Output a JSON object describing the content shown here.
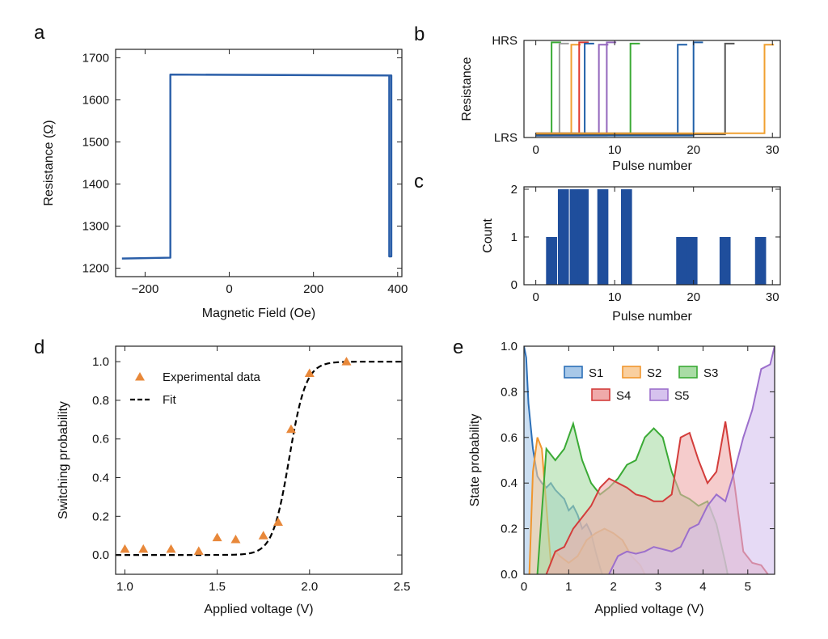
{
  "panels": [
    "a",
    "b",
    "c",
    "d",
    "e"
  ],
  "chart_data": [
    {
      "id": "a",
      "type": "line",
      "xlabel": "Magnetic Field (Oe)",
      "ylabel": "Resistance (Ω)",
      "xlim": [
        -270,
        410
      ],
      "ylim": [
        1180,
        1720
      ],
      "xticks": [
        -200,
        0,
        200,
        400
      ],
      "xtick_labels": [
        "−200",
        "0",
        "200",
        "400"
      ],
      "yticks": [
        1200,
        1300,
        1400,
        1500,
        1600,
        1700
      ],
      "color": "#2a5ea8",
      "series": [
        {
          "name": "hysteresis loop",
          "x": [
            -255,
            -140,
            -140,
            385,
            385,
            385,
            380,
            380,
            -140
          ],
          "y": [
            1223,
            1225,
            1660,
            1658,
            1658,
            1228,
            1228,
            1658,
            1660
          ]
        }
      ]
    },
    {
      "id": "b",
      "type": "line",
      "xlabel": "Pulse number",
      "ylabel": "Resistance",
      "xlim": [
        -1.5,
        31
      ],
      "ylim": [
        0,
        1
      ],
      "xticks": [
        0,
        10,
        20,
        30
      ],
      "yticks": [
        0,
        1
      ],
      "ytick_labels": [
        "LRS",
        "HRS"
      ],
      "series": [
        {
          "name": "d1",
          "switch_at": 2,
          "color": "#3aaa35"
        },
        {
          "name": "d2",
          "switch_at": 3,
          "color": "#9e9e9e"
        },
        {
          "name": "d3",
          "switch_at": 4.5,
          "color": "#f0a030"
        },
        {
          "name": "d4",
          "switch_at": 5.5,
          "color": "#e03a2f"
        },
        {
          "name": "d5",
          "switch_at": 6.2,
          "color": "#1f5fa8"
        },
        {
          "name": "d6",
          "switch_at": 8,
          "color": "#9467bd"
        },
        {
          "name": "d7",
          "switch_at": 9,
          "color": "#9467bd"
        },
        {
          "name": "d8",
          "switch_at": 12,
          "color": "#3aaa35"
        },
        {
          "name": "d9",
          "switch_at": 18,
          "color": "#1f5fa8"
        },
        {
          "name": "d10",
          "switch_at": 20,
          "color": "#1f5fa8"
        },
        {
          "name": "d11",
          "switch_at": 24,
          "color": "#555555"
        },
        {
          "name": "d12",
          "switch_at": 29,
          "color": "#f0a030"
        }
      ]
    },
    {
      "id": "c",
      "type": "bar",
      "xlabel": "Pulse number",
      "ylabel": "Count",
      "xlim": [
        -1.5,
        31
      ],
      "ylim": [
        0,
        2.05
      ],
      "xticks": [
        0,
        10,
        20,
        30
      ],
      "yticks": [
        0,
        1,
        2
      ],
      "color": "#1f4e9c",
      "bar_width": 1.4,
      "x": [
        2,
        3.5,
        5,
        6,
        8.5,
        11.5,
        18.5,
        19.8,
        24,
        28.5
      ],
      "values": [
        1,
        2,
        2,
        2,
        2,
        2,
        1,
        1,
        1,
        1
      ]
    },
    {
      "id": "d",
      "type": "scatter",
      "xlabel": "Applied voltage (V)",
      "ylabel": "Switching probability",
      "xlim": [
        0.95,
        2.5
      ],
      "ylim": [
        -0.1,
        1.08
      ],
      "xticks": [
        1.0,
        1.5,
        2.0,
        2.5
      ],
      "xtick_labels": [
        "1.0",
        "1.5",
        "2.0",
        "2.5"
      ],
      "yticks": [
        0,
        0.2,
        0.4,
        0.6,
        0.8,
        1.0
      ],
      "ytick_labels": [
        "0.0",
        "0.2",
        "0.4",
        "0.6",
        "0.8",
        "1.0"
      ],
      "legend": [
        "Experimental data",
        "Fit"
      ],
      "legend_position": "top-left",
      "series": [
        {
          "name": "Experimental data",
          "color": "#e8883a",
          "x": [
            1.0,
            1.1,
            1.25,
            1.4,
            1.5,
            1.6,
            1.75,
            1.83,
            1.9,
            2.0,
            2.2
          ],
          "y": [
            0.03,
            0.03,
            0.03,
            0.02,
            0.09,
            0.08,
            0.1,
            0.17,
            0.65,
            0.94,
            1.0
          ]
        },
        {
          "name": "Fit",
          "style": "dashed",
          "color": "#000000",
          "model": "logistic",
          "midpoint": 1.89,
          "scale": 0.045
        }
      ]
    },
    {
      "id": "e",
      "type": "area",
      "xlabel": "Applied voltage (V)",
      "ylabel": "State probability",
      "xlim": [
        0,
        5.6
      ],
      "ylim": [
        0,
        1.0
      ],
      "xticks": [
        0,
        1,
        2,
        3,
        4,
        5
      ],
      "yticks": [
        0,
        0.2,
        0.4,
        0.6,
        0.8,
        1.0
      ],
      "ytick_labels": [
        "0.0",
        "0.2",
        "0.4",
        "0.6",
        "0.8",
        "1.0"
      ],
      "legend": [
        "S1",
        "S2",
        "S3",
        "S4",
        "S5"
      ],
      "legend_position": "top-center",
      "series": [
        {
          "name": "S1",
          "color": "#2c6fb7",
          "fill": "#a8c8e8",
          "x": [
            0,
            0.05,
            0.1,
            0.2,
            0.3,
            0.4,
            0.5,
            0.6,
            0.7,
            0.8,
            0.9,
            1.0,
            1.1,
            1.2,
            1.3,
            1.4,
            1.5,
            1.6,
            1.7,
            1.75
          ],
          "y": [
            1.0,
            0.95,
            0.75,
            0.55,
            0.43,
            0.4,
            0.38,
            0.4,
            0.37,
            0.35,
            0.33,
            0.28,
            0.3,
            0.26,
            0.2,
            0.22,
            0.18,
            0.1,
            0.03,
            0.0
          ]
        },
        {
          "name": "S2",
          "color": "#f0962e",
          "fill": "#f9cf9f",
          "x": [
            0.12,
            0.2,
            0.3,
            0.4,
            0.5,
            0.6,
            0.7,
            0.8,
            1.0,
            1.2,
            1.4,
            1.6,
            1.8,
            2.0,
            2.2,
            2.4,
            2.6,
            2.7
          ],
          "y": [
            0.0,
            0.45,
            0.6,
            0.55,
            0.3,
            0.05,
            0.1,
            0.08,
            0.05,
            0.08,
            0.15,
            0.18,
            0.2,
            0.18,
            0.15,
            0.08,
            0.04,
            0.0
          ]
        },
        {
          "name": "S3",
          "color": "#3aaa35",
          "fill": "#a9dca5",
          "x": [
            0.3,
            0.5,
            0.7,
            0.9,
            1.1,
            1.3,
            1.5,
            1.7,
            1.9,
            2.1,
            2.3,
            2.5,
            2.7,
            2.9,
            3.1,
            3.3,
            3.5,
            3.7,
            3.9,
            4.1,
            4.3,
            4.5,
            4.55
          ],
          "y": [
            0.0,
            0.55,
            0.5,
            0.55,
            0.66,
            0.5,
            0.4,
            0.35,
            0.38,
            0.42,
            0.48,
            0.5,
            0.6,
            0.64,
            0.6,
            0.45,
            0.35,
            0.33,
            0.3,
            0.32,
            0.22,
            0.05,
            0.0
          ]
        },
        {
          "name": "S4",
          "color": "#d33d3b",
          "fill": "#efaaaa",
          "x": [
            0.5,
            0.7,
            0.9,
            1.1,
            1.3,
            1.5,
            1.7,
            1.9,
            2.1,
            2.3,
            2.5,
            2.7,
            2.9,
            3.1,
            3.3,
            3.5,
            3.7,
            3.9,
            4.1,
            4.3,
            4.5,
            4.7,
            4.9,
            5.1,
            5.3,
            5.45
          ],
          "y": [
            0.0,
            0.1,
            0.12,
            0.2,
            0.25,
            0.3,
            0.38,
            0.42,
            0.4,
            0.38,
            0.35,
            0.34,
            0.32,
            0.32,
            0.35,
            0.6,
            0.62,
            0.5,
            0.4,
            0.45,
            0.67,
            0.4,
            0.1,
            0.05,
            0.04,
            0.0
          ]
        },
        {
          "name": "S5",
          "color": "#9c6fcc",
          "fill": "#d6c2ee",
          "x": [
            1.9,
            2.1,
            2.3,
            2.5,
            2.7,
            2.9,
            3.1,
            3.3,
            3.5,
            3.7,
            3.9,
            4.1,
            4.3,
            4.5,
            4.7,
            4.9,
            5.1,
            5.3,
            5.5,
            5.6
          ],
          "y": [
            0.0,
            0.08,
            0.1,
            0.09,
            0.1,
            0.12,
            0.11,
            0.1,
            0.12,
            0.2,
            0.22,
            0.3,
            0.35,
            0.32,
            0.45,
            0.6,
            0.72,
            0.9,
            0.92,
            1.0
          ]
        }
      ]
    }
  ]
}
